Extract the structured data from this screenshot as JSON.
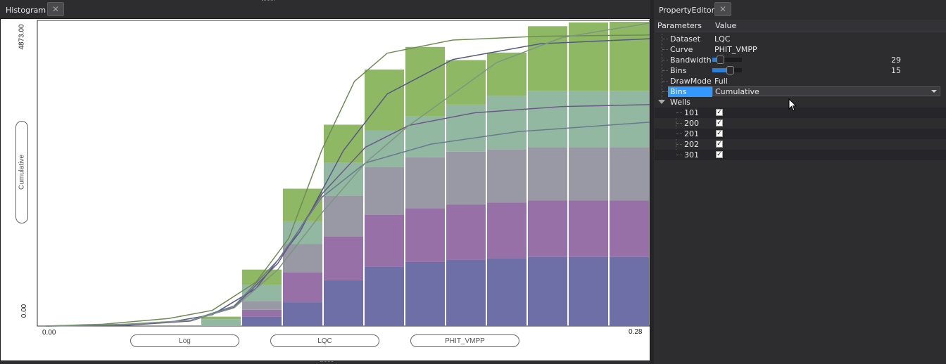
{
  "histogram_panel": {
    "title": "Histogram"
  },
  "property_panel": {
    "title": "PropertyEditor"
  },
  "property_editor": {
    "header": {
      "parameters": "Parameters",
      "value": "Value"
    },
    "rows": {
      "dataset": {
        "label": "Dataset",
        "value": "LQC"
      },
      "curve": {
        "label": "Curve",
        "value": "PHIT_VMPP"
      },
      "bandwidth": {
        "label": "Bandwidth",
        "value": "29",
        "fraction": 0.2
      },
      "bins": {
        "label": "Bins",
        "value": "15",
        "fraction": 0.65
      },
      "drawmode": {
        "label": "DrawMode",
        "value": "Full"
      },
      "bins_mode": {
        "label": "Bins",
        "value": "Cumulative"
      }
    },
    "wells_label": "Wells",
    "wells": [
      {
        "name": "101",
        "checked": true
      },
      {
        "name": "200",
        "checked": true
      },
      {
        "name": "201",
        "checked": true
      },
      {
        "name": "202",
        "checked": true
      },
      {
        "name": "301",
        "checked": true
      }
    ]
  },
  "chart_data": {
    "type": "bar",
    "stacked": true,
    "cumulative": true,
    "ylabel": "Cumulative",
    "ylim": [
      0,
      4873.0
    ],
    "xlim": [
      0.0,
      0.28
    ],
    "y_ticks": [
      "0.00",
      "4873.00"
    ],
    "x_ticks": [
      "0.00",
      "0.28"
    ],
    "axis_buttons": [
      "Log",
      "LQC",
      "PHIT_VMPP"
    ],
    "bin_count": 15,
    "series": [
      {
        "name": "101",
        "color": "#6e6fa7",
        "values": [
          0,
          0,
          0,
          0,
          0,
          150,
          380,
          730,
          950,
          1020,
          1060,
          1080,
          1100,
          1100,
          1100
        ]
      },
      {
        "name": "200",
        "color": "#9670a6",
        "values": [
          0,
          0,
          0,
          0,
          0,
          110,
          480,
          700,
          820,
          860,
          880,
          890,
          900,
          900,
          900
        ]
      },
      {
        "name": "201",
        "color": "#9899a4",
        "values": [
          0,
          0,
          0,
          0,
          0,
          140,
          450,
          650,
          770,
          810,
          840,
          850,
          850,
          850,
          850
        ]
      },
      {
        "name": "202",
        "color": "#93b8a2",
        "values": [
          0,
          0,
          0,
          0,
          110,
          260,
          360,
          530,
          580,
          650,
          750,
          850,
          900,
          900,
          900
        ]
      },
      {
        "name": "301",
        "color": "#8fb864",
        "values": [
          0,
          0,
          0,
          0,
          40,
          240,
          520,
          600,
          970,
          1110,
          710,
          690,
          1030,
          1090,
          1100
        ]
      }
    ],
    "curves": [
      {
        "color": "#6f8c54",
        "points": [
          [
            0.004,
            0
          ],
          [
            0.03,
            30
          ],
          [
            0.06,
            120
          ],
          [
            0.08,
            250
          ],
          [
            0.1,
            700
          ],
          [
            0.115,
            1400
          ],
          [
            0.13,
            2800
          ],
          [
            0.145,
            3900
          ],
          [
            0.16,
            4350
          ],
          [
            0.19,
            4560
          ],
          [
            0.23,
            4620
          ],
          [
            0.28,
            4640
          ]
        ]
      },
      {
        "color": "#565883",
        "points": [
          [
            0.004,
            0
          ],
          [
            0.03,
            10
          ],
          [
            0.06,
            60
          ],
          [
            0.08,
            180
          ],
          [
            0.1,
            600
          ],
          [
            0.12,
            1500
          ],
          [
            0.14,
            2800
          ],
          [
            0.16,
            3700
          ],
          [
            0.19,
            4250
          ],
          [
            0.23,
            4500
          ],
          [
            0.28,
            4580
          ]
        ]
      },
      {
        "color": "#6b5a86",
        "points": [
          [
            0.004,
            0
          ],
          [
            0.04,
            10
          ],
          [
            0.07,
            80
          ],
          [
            0.09,
            300
          ],
          [
            0.11,
            1000
          ],
          [
            0.13,
            2100
          ],
          [
            0.15,
            2850
          ],
          [
            0.17,
            3200
          ],
          [
            0.2,
            3400
          ],
          [
            0.24,
            3500
          ],
          [
            0.28,
            3530
          ]
        ]
      },
      {
        "color": "#6a7a8d",
        "points": [
          [
            0.004,
            0
          ],
          [
            0.04,
            20
          ],
          [
            0.07,
            90
          ],
          [
            0.09,
            320
          ],
          [
            0.11,
            1050
          ],
          [
            0.13,
            2050
          ],
          [
            0.15,
            2600
          ],
          [
            0.18,
            2900
          ],
          [
            0.22,
            3100
          ],
          [
            0.28,
            3250
          ]
        ]
      },
      {
        "color": "#7c9680",
        "points": [
          [
            0.004,
            0
          ],
          [
            0.04,
            30
          ],
          [
            0.07,
            90
          ],
          [
            0.09,
            290
          ],
          [
            0.11,
            900
          ],
          [
            0.13,
            1800
          ],
          [
            0.15,
            2600
          ],
          [
            0.17,
            3200
          ],
          [
            0.19,
            3700
          ],
          [
            0.21,
            4200
          ],
          [
            0.24,
            4600
          ],
          [
            0.28,
            4830
          ]
        ]
      }
    ]
  }
}
